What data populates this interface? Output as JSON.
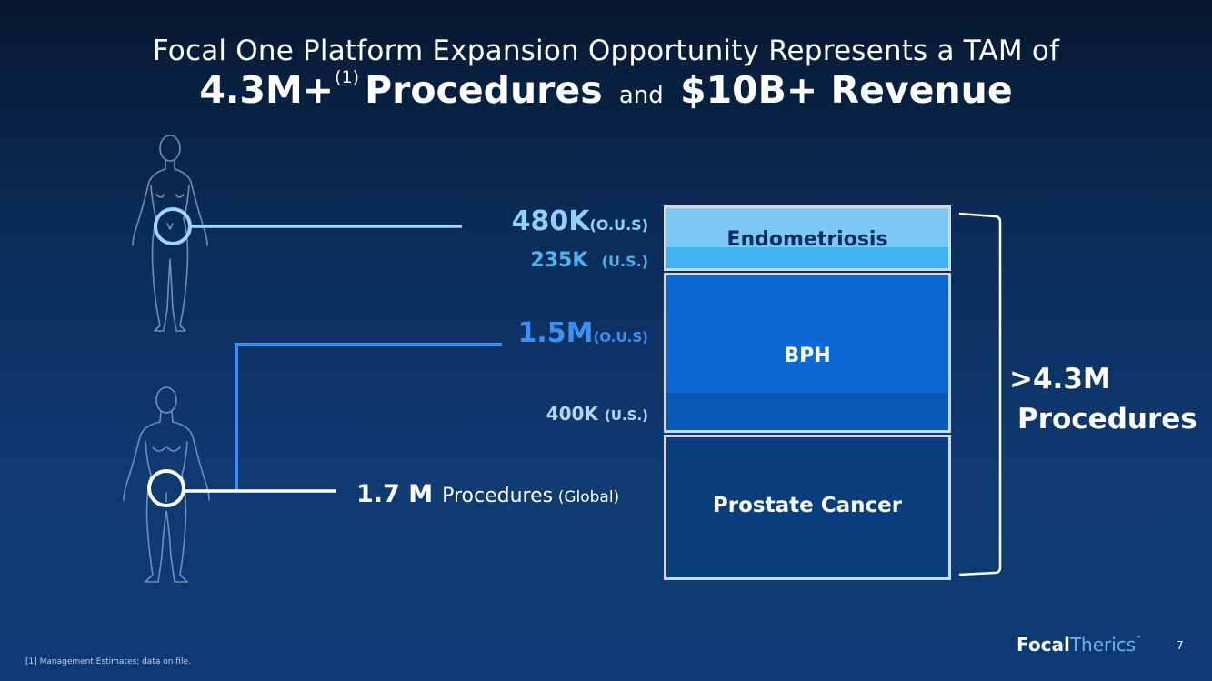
{
  "title": {
    "line1": "Focal One Platform Expansion Opportunity Represents a TAM of",
    "amount": "4.3M+",
    "footnote_ref": "(1)",
    "procedures": "Procedures",
    "and": "and",
    "revenue": "$10B+ Revenue"
  },
  "labels": {
    "endo_ous_value": "480K",
    "endo_ous_region": "(O.U.S)",
    "endo_us_value": "235K",
    "endo_us_region": "(U.S.)",
    "bph_ous_value": "1.5M",
    "bph_ous_region": "(O.U.S)",
    "bph_us_value": "400K",
    "bph_us_region": "(U.S.)",
    "prostate_value": "1.7 M",
    "prostate_word": "Procedures",
    "prostate_region": "(Global)"
  },
  "stack": {
    "endometriosis": "Endometriosis",
    "bph": "BPH",
    "prostate_cancer": "Prostate Cancer"
  },
  "total": {
    "line1": ">4.3M",
    "line2": "Procedures"
  },
  "footer": {
    "footnote": "[1] Management Estimates; data on file.",
    "logo_bold": "Focal",
    "logo_light": "Therics",
    "logo_tm": "™",
    "page_number": "7"
  },
  "colors": {
    "endometriosis_light": "#7cc8f4",
    "endometriosis_us": "#3fb2f0",
    "bph": "#0a67d4",
    "bph_us": "#0858b8",
    "prostate": "#0a3d7e",
    "connector_female": "#9fd4fb",
    "connector_bph": "#3d8ef2",
    "connector_prostate": "#ffffff"
  },
  "icons": [
    "female-figure-icon",
    "male-figure-icon",
    "bracket-icon"
  ]
}
